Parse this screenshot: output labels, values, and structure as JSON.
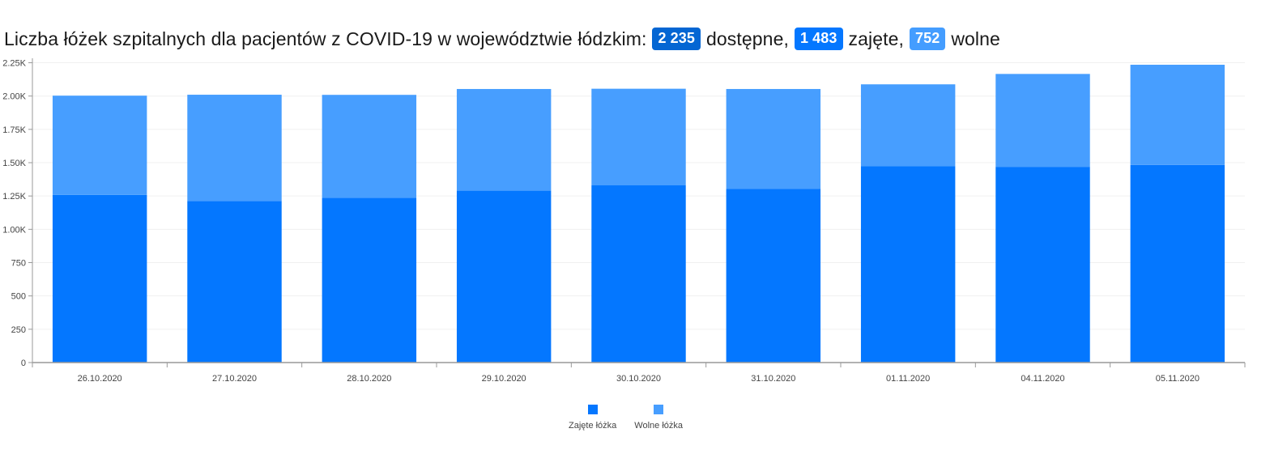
{
  "title": {
    "prefix": "Liczba łóżek szpitalnych dla pacjentów z COVID-19 w województwie łódzkim:",
    "available_value": "2 235",
    "available_label": "dostępne,",
    "occupied_value": "1 483",
    "occupied_label": "zajęte,",
    "free_value": "752",
    "free_label": "wolne"
  },
  "colors": {
    "occupied": "#0477ff",
    "free": "#479eff",
    "badge_available": "#0466d3",
    "badge_occupied": "#0477ff",
    "badge_free": "#449dff",
    "axis": "#999999"
  },
  "legend": [
    {
      "label": "Zajęte łóżka",
      "color": "#0477ff"
    },
    {
      "label": "Wolne łóżka",
      "color": "#479eff"
    }
  ],
  "chart_data": {
    "type": "bar",
    "stacked": true,
    "categories": [
      "26.10.2020",
      "27.10.2020",
      "28.10.2020",
      "29.10.2020",
      "30.10.2020",
      "31.10.2020",
      "01.11.2020",
      "04.11.2020",
      "05.11.2020"
    ],
    "series": [
      {
        "name": "Zajęte łóżka",
        "values": [
          1258,
          1213,
          1237,
          1290,
          1330,
          1303,
          1473,
          1469,
          1483
        ]
      },
      {
        "name": "Wolne łóżka",
        "values": [
          745,
          797,
          772,
          763,
          725,
          750,
          615,
          697,
          752
        ]
      }
    ],
    "ylim": [
      0,
      2235
    ],
    "yticks": [
      0,
      250,
      500,
      750,
      1000,
      1250,
      1500,
      1750,
      2000,
      2250
    ],
    "ytick_labels": [
      "0",
      "250",
      "500",
      "750",
      "1.00K",
      "1.25K",
      "1.50K",
      "1.75K",
      "2.00K",
      "2.25K"
    ],
    "grid": true,
    "legend_position": "bottom-center"
  }
}
